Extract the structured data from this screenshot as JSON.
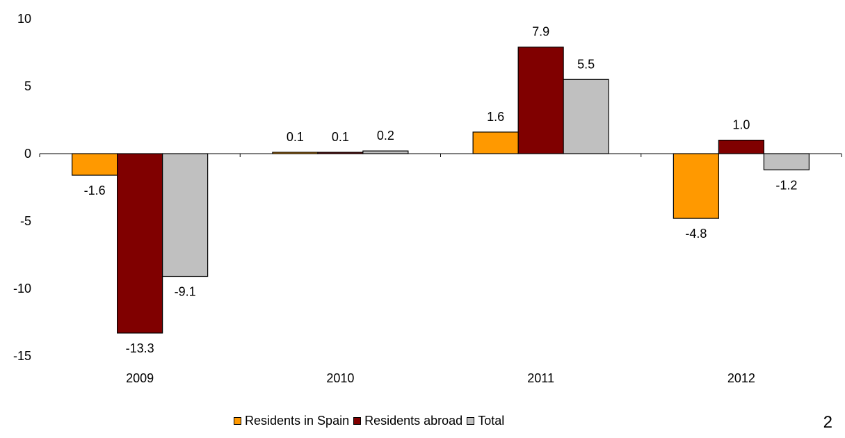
{
  "chart_data": {
    "type": "bar",
    "categories": [
      "2009",
      "2010",
      "2011",
      "2012"
    ],
    "series": [
      {
        "name": "Residents in Spain",
        "color": "#FF9900",
        "values": [
          -1.6,
          0.1,
          1.6,
          -4.8
        ],
        "labels": [
          "-1.6",
          "0.1",
          "1.6",
          "-4.8"
        ]
      },
      {
        "name": "Residents abroad",
        "color": "#800000",
        "values": [
          -13.3,
          0.1,
          7.9,
          1.0
        ],
        "labels": [
          "-13.3",
          "0.1",
          "7.9",
          "1.0"
        ]
      },
      {
        "name": "Total",
        "color": "#C0C0C0",
        "values": [
          -9.1,
          0.2,
          5.5,
          -1.2
        ],
        "labels": [
          "-9.1",
          "0.2",
          "5.5",
          "-1.2"
        ]
      }
    ],
    "yticks": [
      "10",
      "5",
      "0",
      "-5",
      "-10",
      "-15"
    ],
    "ylim": [
      -15,
      10
    ],
    "grid": false,
    "legend_position": "bottom"
  },
  "page_number": "2"
}
